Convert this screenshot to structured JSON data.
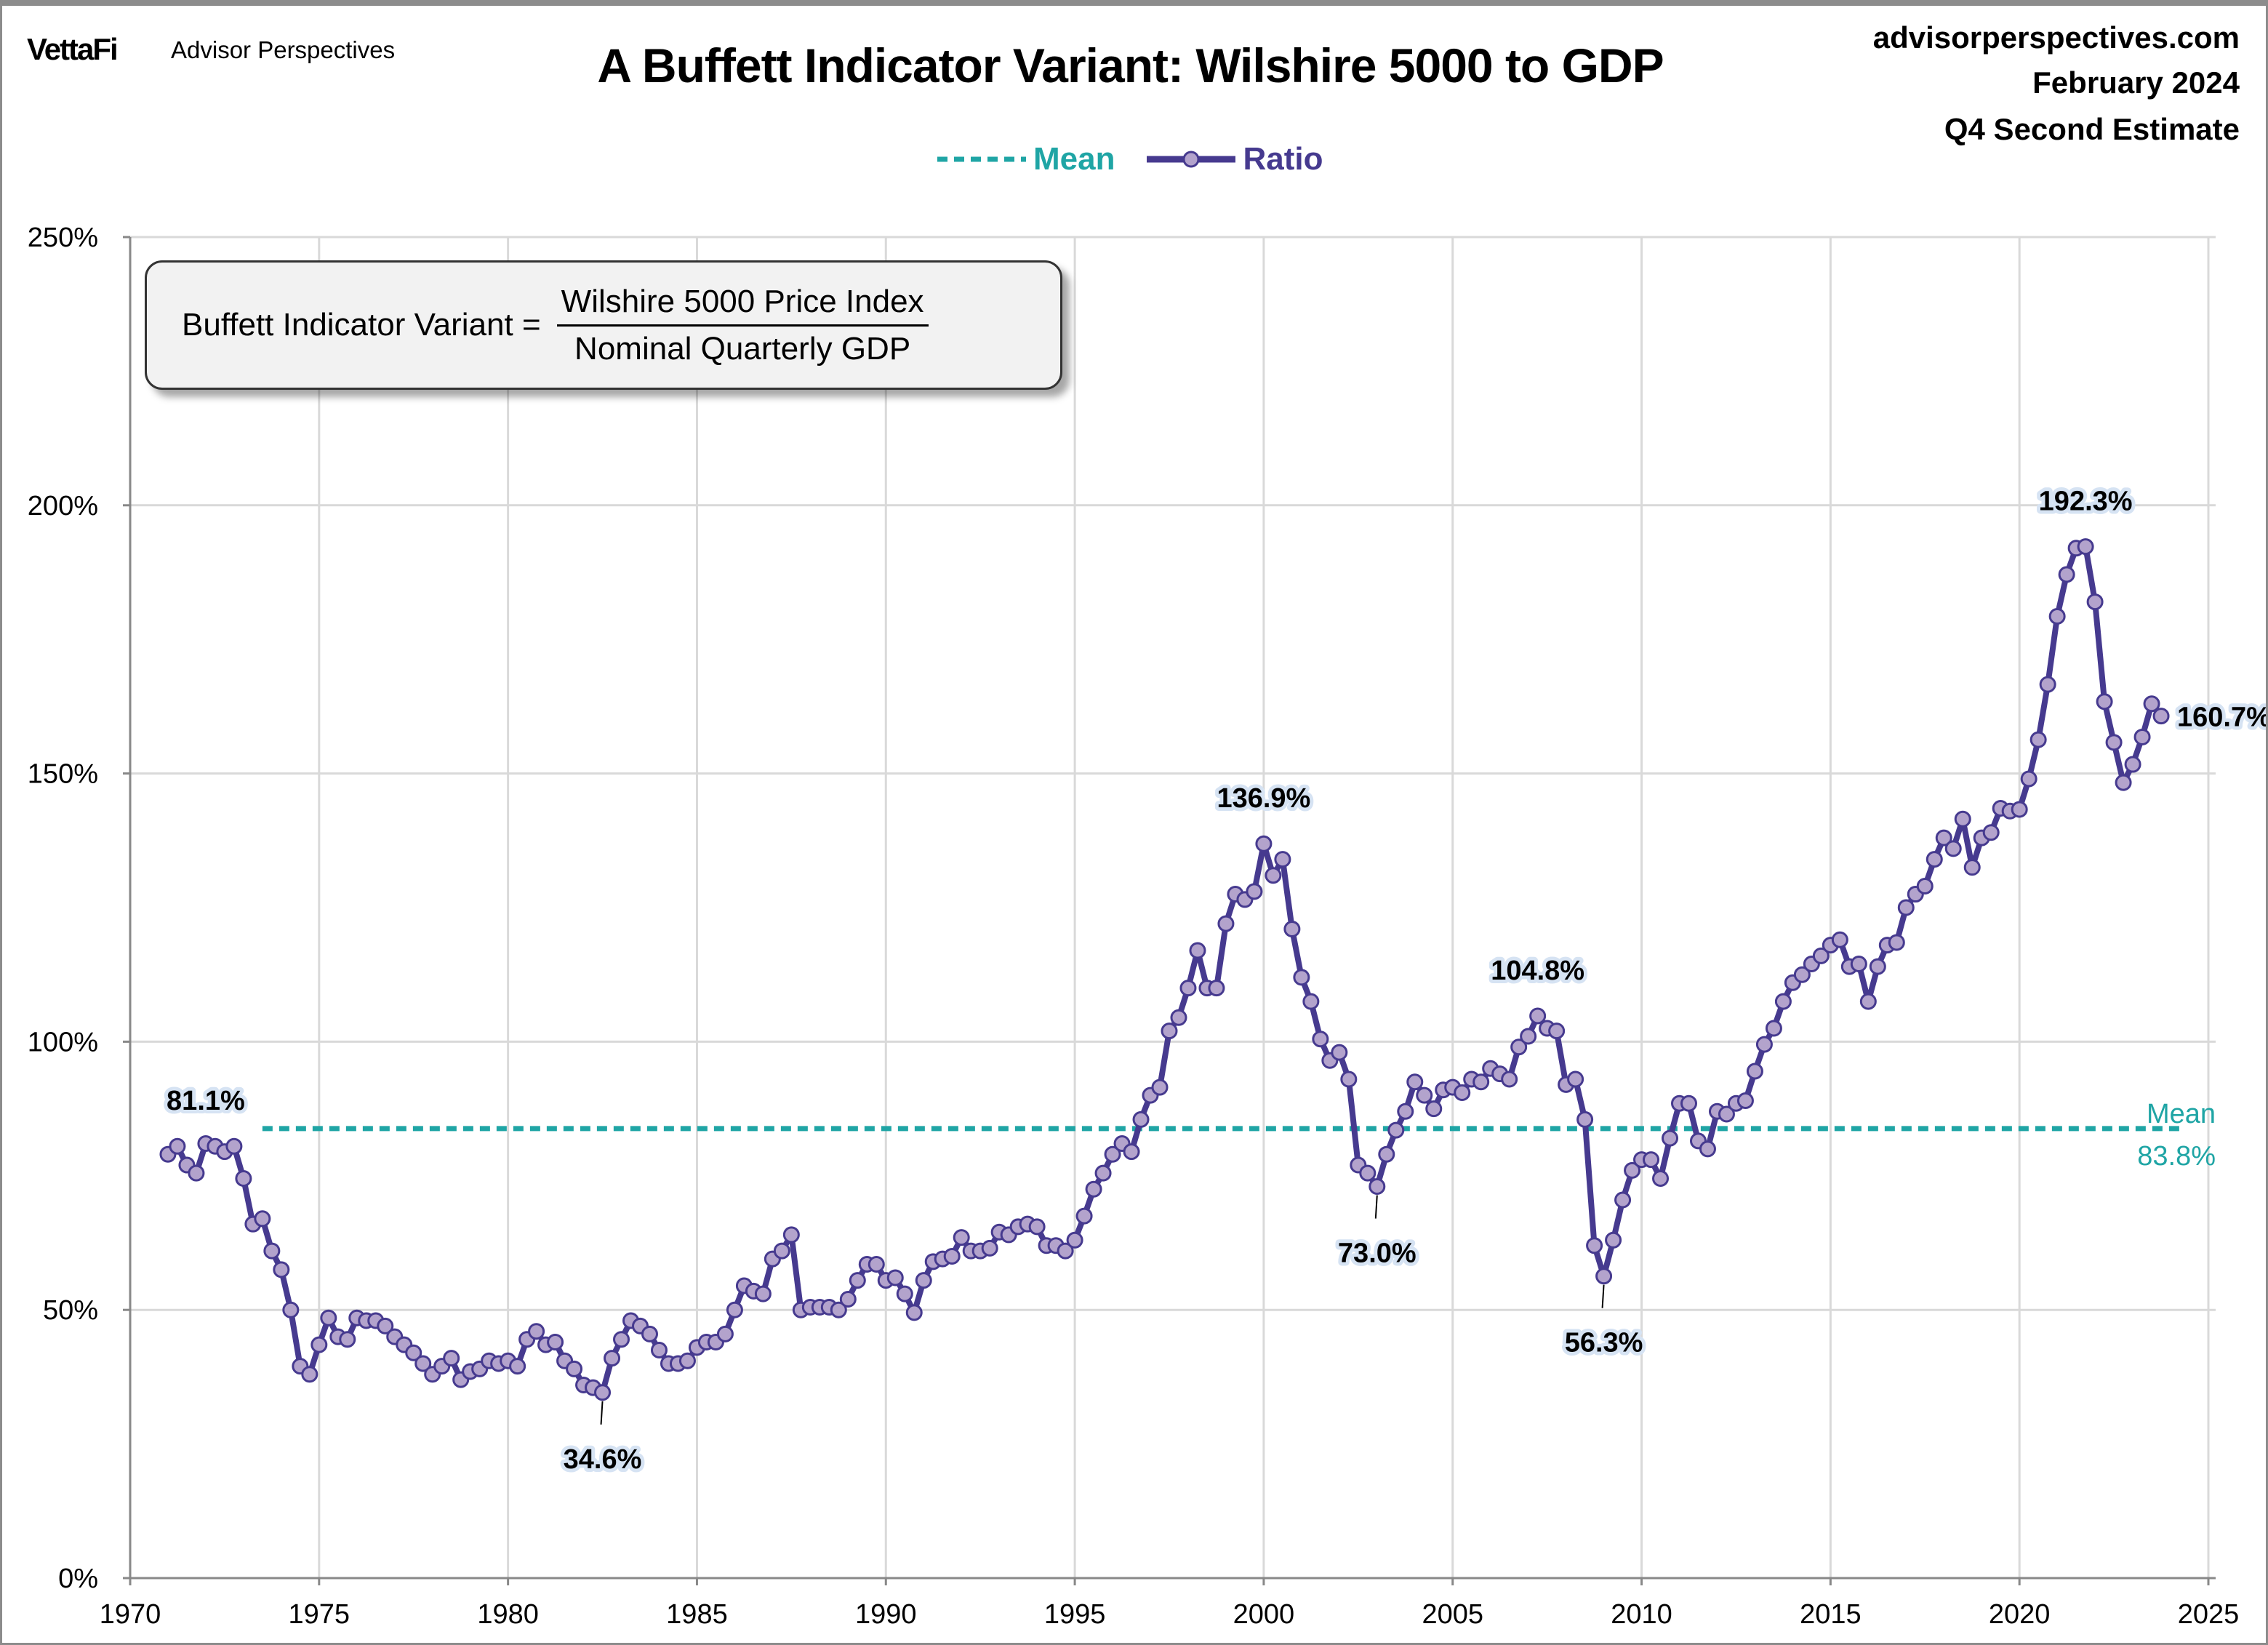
{
  "header": {
    "logo": "VettaFi",
    "logo_sub": "Advisor Perspectives",
    "site": "advisorperspectives.com",
    "date": "February 2024",
    "estimate": "Q4 Second Estimate"
  },
  "formula": {
    "lhs": "Buffett Indicator Variant =",
    "numerator": "Wilshire 5000 Price Index",
    "denominator": "Nominal Quarterly GDP"
  },
  "colors": {
    "ratio_line": "#463a8f",
    "ratio_marker": "#b3a3cc",
    "mean": "#1fa5a5",
    "grid": "#d9d9d9",
    "label_glow": "#d6e3f3"
  },
  "chart_data": {
    "type": "line",
    "title": "A Buffett Indicator Variant: Wilshire 5000 to GDP",
    "xlabel": "",
    "ylabel": "",
    "xlim": [
      1970,
      2025
    ],
    "ylim": [
      0,
      250
    ],
    "x_ticks": [
      "1970",
      "1975",
      "1980",
      "1985",
      "1990",
      "1995",
      "2000",
      "2005",
      "2010",
      "2015",
      "2020",
      "2025"
    ],
    "y_ticks": [
      "0%",
      "50%",
      "100%",
      "150%",
      "200%",
      "250%"
    ],
    "grid": true,
    "legend": {
      "placement": "top-center",
      "entries": [
        "Mean",
        "Ratio"
      ]
    },
    "x_start": 1971.0,
    "x_step": 0.25,
    "series": [
      {
        "name": "Ratio",
        "unit": "%",
        "values": [
          79,
          80.5,
          77,
          75.5,
          81,
          80.5,
          79.5,
          80.5,
          74.5,
          66,
          67,
          61,
          57.5,
          50,
          39.5,
          38,
          43.5,
          48.5,
          45,
          44.5,
          48.5,
          48,
          48,
          47,
          45,
          43.5,
          42,
          40,
          38,
          39.5,
          41,
          37,
          38.5,
          39,
          40.5,
          40,
          40.5,
          39.5,
          44.5,
          46,
          43.5,
          44,
          40.5,
          39,
          36,
          35.5,
          34.6,
          41,
          44.5,
          48,
          47,
          45.5,
          42.5,
          40,
          40,
          40.5,
          43,
          44,
          44,
          45.5,
          50,
          54.5,
          53.5,
          53,
          59.5,
          61,
          64,
          50,
          50.5,
          50.5,
          50.5,
          50,
          52,
          55.5,
          58.5,
          58.5,
          55.5,
          56,
          53,
          49.5,
          55.5,
          59,
          59.5,
          60,
          63.5,
          61,
          61,
          61.5,
          64.5,
          64,
          65.5,
          66,
          65.5,
          62,
          62,
          61,
          63,
          67.5,
          72.5,
          75.5,
          79,
          81,
          79.5,
          85.5,
          90,
          91.5,
          102,
          104.5,
          110,
          117,
          110,
          110,
          122,
          127.5,
          126.5,
          128,
          136.9,
          131,
          134,
          121,
          112,
          107.5,
          100.5,
          96.5,
          98,
          93,
          77,
          75.5,
          73,
          79,
          83.5,
          87,
          92.5,
          90,
          87.5,
          91,
          91.5,
          90.5,
          93,
          92.5,
          95,
          94,
          93,
          99,
          101,
          104.8,
          102.5,
          102,
          92,
          93,
          85.5,
          62,
          56.3,
          63,
          70.5,
          76,
          78,
          78,
          74.5,
          82,
          88.5,
          88.5,
          81.5,
          80,
          87,
          86.5,
          88.5,
          89,
          94.5,
          99.5,
          102.5,
          107.5,
          111,
          112.5,
          114.5,
          116,
          118,
          119,
          114,
          114.5,
          107.5,
          114,
          118,
          118.5,
          125,
          127.5,
          129,
          134,
          138,
          136,
          141.5,
          132.5,
          138,
          139,
          143.5,
          143,
          143.3,
          149,
          156.3,
          166.6,
          179.3,
          187.1,
          192,
          192.3,
          182,
          163.4,
          155.8,
          148.3,
          151.7,
          156.8,
          163,
          160.7
        ]
      },
      {
        "name": "Mean",
        "unit": "%",
        "value": 83.8,
        "x_range": [
          1973.5,
          2024.25
        ]
      }
    ],
    "annotations": [
      {
        "text": "81.1%",
        "x": 1972.0,
        "y": 80.5,
        "position": "above"
      },
      {
        "text": "34.6%",
        "x": 1982.5,
        "y": 34.6,
        "position": "below"
      },
      {
        "text": "136.9%",
        "x": 2000.0,
        "y": 136.9,
        "position": "above"
      },
      {
        "text": "73.0%",
        "x": 2003.0,
        "y": 73.0,
        "position": "below"
      },
      {
        "text": "104.8%",
        "x": 2007.25,
        "y": 104.8,
        "position": "above"
      },
      {
        "text": "56.3%",
        "x": 2009.0,
        "y": 56.3,
        "position": "below"
      },
      {
        "text": "192.3%",
        "x": 2021.75,
        "y": 192.3,
        "position": "above"
      },
      {
        "text": "160.7%",
        "x": 2023.75,
        "y": 160.7,
        "position": "right"
      }
    ],
    "mean_label": {
      "line1": "Mean",
      "line2": "83.8%"
    }
  }
}
